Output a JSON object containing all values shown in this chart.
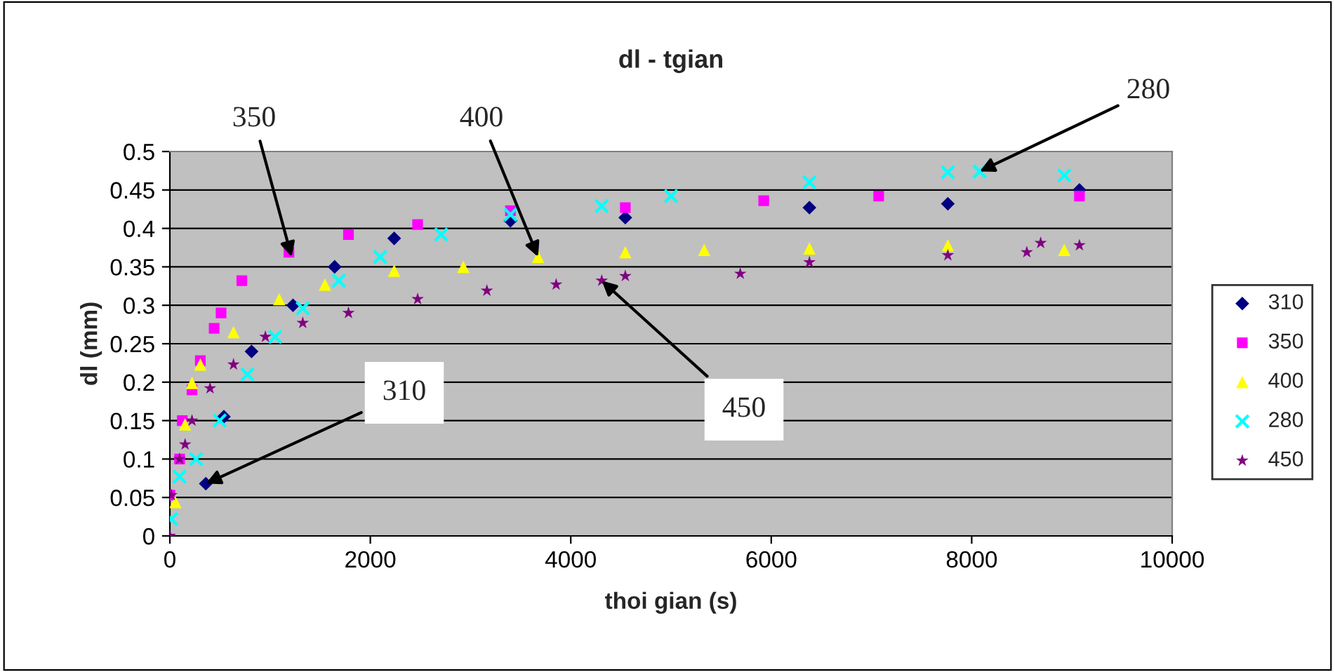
{
  "chart_data": {
    "type": "scatter",
    "title": "dl - tgian",
    "xlabel": "thoi gian (s)",
    "ylabel": "dl (mm)",
    "xlim": [
      0,
      10000
    ],
    "xticks": [
      0,
      2000,
      4000,
      6000,
      8000,
      10000
    ],
    "ylim": [
      0,
      0.5
    ],
    "yticks": [
      0,
      0.05,
      0.1,
      0.15,
      0.2,
      0.25,
      0.3,
      0.35,
      0.4,
      0.45,
      0.5
    ],
    "grid": "y",
    "legend": "right",
    "series": [
      {
        "name": "310",
        "color": "#000080",
        "marker": "diamond",
        "x": [
          359,
          539,
          815,
          1229,
          1644,
          2238,
          3398,
          4544,
          6381,
          7762,
          9075
        ],
        "values": [
          0.068,
          0.155,
          0.24,
          0.3,
          0.35,
          0.387,
          0.41,
          0.414,
          0.427,
          0.432,
          0.45
        ]
      },
      {
        "name": "350",
        "color": "#ff00ff",
        "marker": "square",
        "x": [
          0,
          97,
          124,
          221,
          304,
          442,
          511,
          718,
          1188,
          1782,
          2472,
          3398,
          4544,
          5925,
          7072,
          9075
        ],
        "values": [
          0.053,
          0.1,
          0.15,
          0.19,
          0.228,
          0.27,
          0.29,
          0.332,
          0.369,
          0.392,
          0.405,
          0.423,
          0.427,
          0.436,
          0.442,
          0.442
        ]
      },
      {
        "name": "400",
        "color": "#ffff00",
        "marker": "triangle",
        "x": [
          55,
          152,
          221,
          304,
          635,
          1091,
          1547,
          2238,
          2928,
          3674,
          4544,
          5331,
          6381,
          7762,
          8923
        ],
        "values": [
          0.044,
          0.145,
          0.199,
          0.223,
          0.265,
          0.308,
          0.327,
          0.345,
          0.35,
          0.363,
          0.369,
          0.372,
          0.374,
          0.378,
          0.372
        ]
      },
      {
        "name": "280",
        "color": "#00ffff",
        "marker": "cross",
        "x": [
          14,
          97,
          262,
          497,
          773,
          1050,
          1326,
          1685,
          2099,
          2707,
          3398,
          4309,
          5000,
          6381,
          7762,
          8079,
          8923
        ],
        "values": [
          0.022,
          0.077,
          0.1,
          0.15,
          0.21,
          0.259,
          0.296,
          0.332,
          0.363,
          0.392,
          0.418,
          0.429,
          0.442,
          0.46,
          0.473,
          0.474,
          0.469
        ]
      },
      {
        "name": "450",
        "color": "#800080",
        "marker": "star",
        "x": [
          0,
          14,
          97,
          152,
          221,
          401,
          635,
          953,
          1326,
          1782,
          2472,
          3163,
          3854,
          4309,
          4544,
          5691,
          6381,
          7762,
          8550,
          8688,
          9075
        ],
        "values": [
          0,
          0.053,
          0.1,
          0.119,
          0.15,
          0.192,
          0.223,
          0.259,
          0.277,
          0.29,
          0.308,
          0.319,
          0.327,
          0.332,
          0.338,
          0.341,
          0.356,
          0.365,
          0.369,
          0.381,
          0.378
        ]
      }
    ],
    "annotations": [
      {
        "text": "350",
        "x": 1215,
        "y": 0.363
      },
      {
        "text": "400",
        "x": 3674,
        "y": 0.363
      },
      {
        "text": "280",
        "x": 8079,
        "y": 0.474
      },
      {
        "text": "310",
        "x": 359,
        "y": 0.068
      },
      {
        "text": "450",
        "x": 4309,
        "y": 0.332
      }
    ]
  }
}
